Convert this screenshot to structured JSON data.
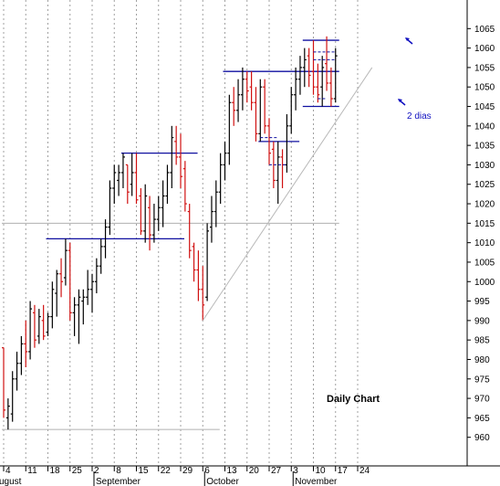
{
  "chart_data": {
    "type": "ohlc",
    "title": "Daily Chart",
    "ylim": [
      955,
      1070
    ],
    "y_ticks": [
      960,
      965,
      970,
      975,
      980,
      985,
      990,
      995,
      1000,
      1005,
      1010,
      1015,
      1020,
      1025,
      1030,
      1035,
      1040,
      1045,
      1050,
      1055,
      1060,
      1065
    ],
    "x_ticks": [
      "4",
      "11",
      "18",
      "25",
      "2",
      "8",
      "15",
      "22",
      "29",
      "6",
      "13",
      "20",
      "27",
      "3",
      "10",
      "17",
      "24"
    ],
    "months": [
      "ugust",
      "September",
      "October",
      "November"
    ],
    "annotation": "2 dias",
    "colors": {
      "up": "#000000",
      "down": "#d01010",
      "level": "#1010a0",
      "support": "#b0b0b0",
      "grid": "#a0a0a0"
    },
    "grid": true,
    "bars": [
      {
        "date": "Aug 3",
        "open": 983,
        "high": 983,
        "low": 965,
        "close": 967
      },
      {
        "date": "Aug 4",
        "open": 965,
        "high": 970,
        "low": 962,
        "close": 968
      },
      {
        "date": "Aug 5",
        "open": 966,
        "high": 977,
        "low": 964,
        "close": 975
      },
      {
        "date": "Aug 6",
        "open": 975,
        "high": 982,
        "low": 972,
        "close": 979
      },
      {
        "date": "Aug 7",
        "open": 979,
        "high": 986,
        "low": 976,
        "close": 984
      },
      {
        "date": "Aug 10",
        "open": 984,
        "high": 990,
        "low": 978,
        "close": 982
      },
      {
        "date": "Aug 11",
        "open": 982,
        "high": 995,
        "low": 980,
        "close": 993
      },
      {
        "date": "Aug 12",
        "open": 992,
        "high": 994,
        "low": 983,
        "close": 985
      },
      {
        "date": "Aug 13",
        "open": 986,
        "high": 993,
        "low": 984,
        "close": 991
      },
      {
        "date": "Aug 14",
        "open": 990,
        "high": 994,
        "low": 985,
        "close": 986
      },
      {
        "date": "Aug 17",
        "open": 987,
        "high": 992,
        "low": 986,
        "close": 991
      },
      {
        "date": "Aug 18",
        "open": 991,
        "high": 1000,
        "low": 988,
        "close": 998
      },
      {
        "date": "Aug 19",
        "open": 997,
        "high": 1003,
        "low": 991,
        "close": 1002
      },
      {
        "date": "Aug 20",
        "open": 1002,
        "high": 1006,
        "low": 996,
        "close": 1000
      },
      {
        "date": "Aug 21",
        "open": 1001,
        "high": 1011,
        "low": 999,
        "close": 1008
      },
      {
        "date": "Aug 24",
        "open": 1008,
        "high": 1010,
        "low": 990,
        "close": 992
      },
      {
        "date": "Aug 25",
        "open": 992,
        "high": 996,
        "low": 986,
        "close": 994
      },
      {
        "date": "Aug 26",
        "open": 994,
        "high": 998,
        "low": 984,
        "close": 996
      },
      {
        "date": "Aug 27",
        "open": 995,
        "high": 998,
        "low": 989,
        "close": 996
      },
      {
        "date": "Aug 28",
        "open": 996,
        "high": 1003,
        "low": 994,
        "close": 998
      },
      {
        "date": "Aug 31",
        "open": 998,
        "high": 1002,
        "low": 992,
        "close": 1000
      },
      {
        "date": "Sep 1",
        "open": 1000,
        "high": 1006,
        "low": 997,
        "close": 1004
      },
      {
        "date": "Sep 2",
        "open": 1004,
        "high": 1011,
        "low": 1002,
        "close": 1009
      },
      {
        "date": "Sep 3",
        "open": 1009,
        "high": 1016,
        "low": 1006,
        "close": 1014
      },
      {
        "date": "Sep 4",
        "open": 1014,
        "high": 1026,
        "low": 1012,
        "close": 1024
      },
      {
        "date": "Sep 8",
        "open": 1024,
        "high": 1030,
        "low": 1020,
        "close": 1028
      },
      {
        "date": "Sep 9",
        "open": 1026,
        "high": 1030,
        "low": 1022,
        "close": 1028
      },
      {
        "date": "Sep 10",
        "open": 1028,
        "high": 1033,
        "low": 1024,
        "close": 1032
      },
      {
        "date": "Sep 11",
        "open": 1030,
        "high": 1030,
        "low": 1020,
        "close": 1023
      },
      {
        "date": "Sep 14",
        "open": 1025,
        "high": 1033,
        "low": 1022,
        "close": 1028
      },
      {
        "date": "Sep 15",
        "open": 1028,
        "high": 1033,
        "low": 1020,
        "close": 1021
      },
      {
        "date": "Sep 16",
        "open": 1022,
        "high": 1024,
        "low": 1012,
        "close": 1013
      },
      {
        "date": "Sep 17",
        "open": 1013,
        "high": 1025,
        "low": 1010,
        "close": 1022
      },
      {
        "date": "Sep 18",
        "open": 1019,
        "high": 1022,
        "low": 1008,
        "close": 1012
      },
      {
        "date": "Sep 21",
        "open": 1012,
        "high": 1020,
        "low": 1010,
        "close": 1016
      },
      {
        "date": "Sep 22",
        "open": 1016,
        "high": 1022,
        "low": 1013,
        "close": 1019
      },
      {
        "date": "Sep 23",
        "open": 1019,
        "high": 1026,
        "low": 1014,
        "close": 1022
      },
      {
        "date": "Sep 24",
        "open": 1022,
        "high": 1030,
        "low": 1020,
        "close": 1028
      },
      {
        "date": "Sep 25",
        "open": 1028,
        "high": 1040,
        "low": 1024,
        "close": 1037
      },
      {
        "date": "Sep 28",
        "open": 1036,
        "high": 1040,
        "low": 1030,
        "close": 1032
      },
      {
        "date": "Sep 29",
        "open": 1032,
        "high": 1038,
        "low": 1024,
        "close": 1027
      },
      {
        "date": "Sep 30",
        "open": 1029,
        "high": 1031,
        "low": 1018,
        "close": 1020
      },
      {
        "date": "Oct 1",
        "open": 1018,
        "high": 1020,
        "low": 1006,
        "close": 1008
      },
      {
        "date": "Oct 2",
        "open": 1009,
        "high": 1010,
        "low": 1000,
        "close": 1003
      },
      {
        "date": "Oct 5",
        "open": 1003,
        "high": 1008,
        "low": 995,
        "close": 998
      },
      {
        "date": "Oct 6",
        "open": 998,
        "high": 1004,
        "low": 990,
        "close": 994
      },
      {
        "date": "Oct 7",
        "open": 996,
        "high": 1015,
        "low": 995,
        "close": 1013
      },
      {
        "date": "Oct 8",
        "open": 1014,
        "high": 1022,
        "low": 1010,
        "close": 1018
      },
      {
        "date": "Oct 9",
        "open": 1018,
        "high": 1026,
        "low": 1014,
        "close": 1023
      },
      {
        "date": "Oct 12",
        "open": 1023,
        "high": 1033,
        "low": 1020,
        "close": 1030
      },
      {
        "date": "Oct 13",
        "open": 1030,
        "high": 1036,
        "low": 1026,
        "close": 1033
      },
      {
        "date": "Oct 14",
        "open": 1033,
        "high": 1048,
        "low": 1030,
        "close": 1046
      },
      {
        "date": "Oct 15",
        "open": 1046,
        "high": 1050,
        "low": 1040,
        "close": 1044
      },
      {
        "date": "Oct 16",
        "open": 1044,
        "high": 1052,
        "low": 1041,
        "close": 1048
      },
      {
        "date": "Oct 19",
        "open": 1048,
        "high": 1055,
        "low": 1044,
        "close": 1052
      },
      {
        "date": "Oct 20",
        "open": 1052,
        "high": 1054,
        "low": 1046,
        "close": 1049
      },
      {
        "date": "Oct 21",
        "open": 1050,
        "high": 1054,
        "low": 1044,
        "close": 1046
      },
      {
        "date": "Oct 22",
        "open": 1046,
        "high": 1050,
        "low": 1036,
        "close": 1038
      },
      {
        "date": "Oct 23",
        "open": 1038,
        "high": 1052,
        "low": 1036,
        "close": 1050
      },
      {
        "date": "Oct 26",
        "open": 1050,
        "high": 1052,
        "low": 1038,
        "close": 1040
      },
      {
        "date": "Oct 27",
        "open": 1040,
        "high": 1042,
        "low": 1030,
        "close": 1033
      },
      {
        "date": "Oct 28",
        "open": 1034,
        "high": 1036,
        "low": 1024,
        "close": 1026
      },
      {
        "date": "Oct 29",
        "open": 1026,
        "high": 1036,
        "low": 1020,
        "close": 1032
      },
      {
        "date": "Oct 30",
        "open": 1032,
        "high": 1034,
        "low": 1024,
        "close": 1030
      },
      {
        "date": "Nov 2",
        "open": 1030,
        "high": 1043,
        "low": 1028,
        "close": 1040
      },
      {
        "date": "Nov 3",
        "open": 1040,
        "high": 1050,
        "low": 1038,
        "close": 1048
      },
      {
        "date": "Nov 4",
        "open": 1048,
        "high": 1055,
        "low": 1044,
        "close": 1052
      },
      {
        "date": "Nov 5",
        "open": 1052,
        "high": 1058,
        "low": 1048,
        "close": 1055
      },
      {
        "date": "Nov 6",
        "open": 1055,
        "high": 1060,
        "low": 1050,
        "close": 1057
      },
      {
        "date": "Nov 9",
        "open": 1058,
        "high": 1060,
        "low": 1050,
        "close": 1053
      },
      {
        "date": "Nov 10",
        "open": 1054,
        "high": 1062,
        "low": 1048,
        "close": 1050
      },
      {
        "date": "Nov 11",
        "open": 1050,
        "high": 1056,
        "low": 1046,
        "close": 1048
      },
      {
        "date": "Nov 12",
        "open": 1050,
        "high": 1058,
        "low": 1045,
        "close": 1055
      },
      {
        "date": "Nov 13",
        "open": 1056,
        "high": 1063,
        "low": 1049,
        "close": 1051
      },
      {
        "date": "Nov 16",
        "open": 1051,
        "high": 1055,
        "low": 1045,
        "close": 1047
      },
      {
        "date": "Nov 17",
        "open": 1047,
        "high": 1060,
        "low": 1046,
        "close": 1058
      }
    ],
    "levels": [
      {
        "y": 1011,
        "from": "Aug 17",
        "to": "Sep 29",
        "color": "level"
      },
      {
        "y": 1033,
        "from": "Sep 10",
        "to": "Oct 2",
        "color": "level"
      },
      {
        "y": 1054,
        "from": "Oct 13",
        "to": "Nov 17",
        "color": "level"
      },
      {
        "y": 1036,
        "from": "Oct 23",
        "to": "Nov 4",
        "color": "level"
      },
      {
        "y": 1045,
        "from": "Nov 6",
        "to": "Nov 17",
        "color": "level"
      },
      {
        "y": 1062,
        "from": "Nov 6",
        "to": "Nov 17",
        "color": "level"
      },
      {
        "y": 1015,
        "from": "Aug 3",
        "to": "Nov 17",
        "color": "support"
      },
      {
        "y": 962,
        "from": "Aug 3",
        "to": "Oct 9",
        "color": "support"
      }
    ],
    "dashed_levels": [
      {
        "y": 1037,
        "from": "Oct 23",
        "to": "Oct 29"
      },
      {
        "y": 1030,
        "from": "Oct 27",
        "to": "Nov 2"
      },
      {
        "y": 1059,
        "from": "Nov 10",
        "to": "Nov 17"
      },
      {
        "y": 1057,
        "from": "Nov 10",
        "to": "Nov 17"
      },
      {
        "y": 1047,
        "from": "Nov 11",
        "to": "Nov 13"
      }
    ],
    "trendline": {
      "from": {
        "date": "Oct 6",
        "y": 990
      },
      "to": {
        "date": "Nov 17",
        "y": 1055
      }
    }
  }
}
